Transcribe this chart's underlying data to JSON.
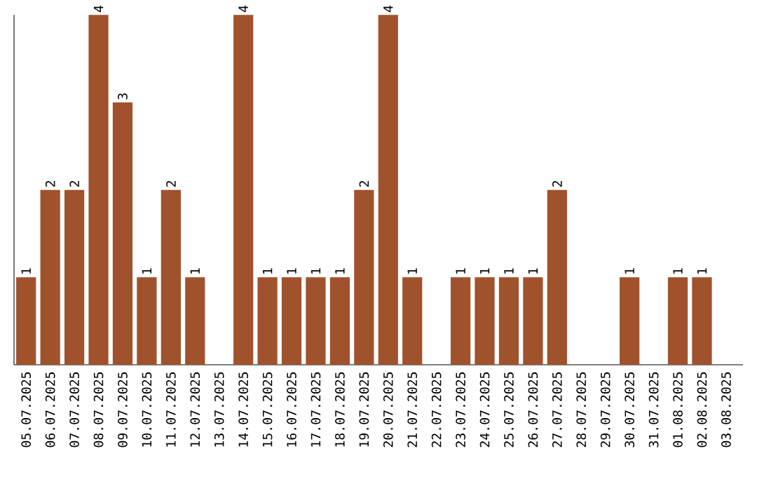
{
  "chart_data": {
    "type": "bar",
    "color": "#a0522d",
    "tick_labels": "x",
    "data_labels": false,
    "categories": [
      "05.07.2025",
      "06.07.2025",
      "07.07.2025",
      "08.07.2025",
      "09.07.2025",
      "10.07.2025",
      "11.07.2025",
      "12.07.2025",
      "13.07.2025",
      "14.07.2025",
      "15.07.2025",
      "16.07.2025",
      "17.07.2025",
      "18.07.2025",
      "19.07.2025",
      "20.07.2025",
      "21.07.2025",
      "22.07.2025",
      "23.07.2025",
      "24.07.2025",
      "25.07.2025",
      "26.07.2025",
      "27.07.2025",
      "28.07.2025",
      "29.07.2025",
      "30.07.2025",
      "31.07.2025",
      "01.08.2025",
      "02.08.2025",
      "03.08.2025"
    ],
    "values": [
      1,
      2,
      2,
      4,
      3,
      1,
      2,
      1,
      0,
      4,
      1,
      1,
      1,
      1,
      2,
      4,
      1,
      0,
      1,
      1,
      1,
      1,
      2,
      0,
      0,
      1,
      0,
      1,
      1,
      0
    ],
    "value_labels": [
      "1",
      "2",
      "2",
      "4",
      "3",
      "1",
      "2",
      "1",
      null,
      "4",
      "1",
      "1",
      "1",
      "1",
      "2",
      "4",
      "1",
      null,
      "1",
      "1",
      "1",
      "1",
      "2",
      null,
      null,
      "1",
      null,
      "1",
      "1",
      null
    ]
  }
}
